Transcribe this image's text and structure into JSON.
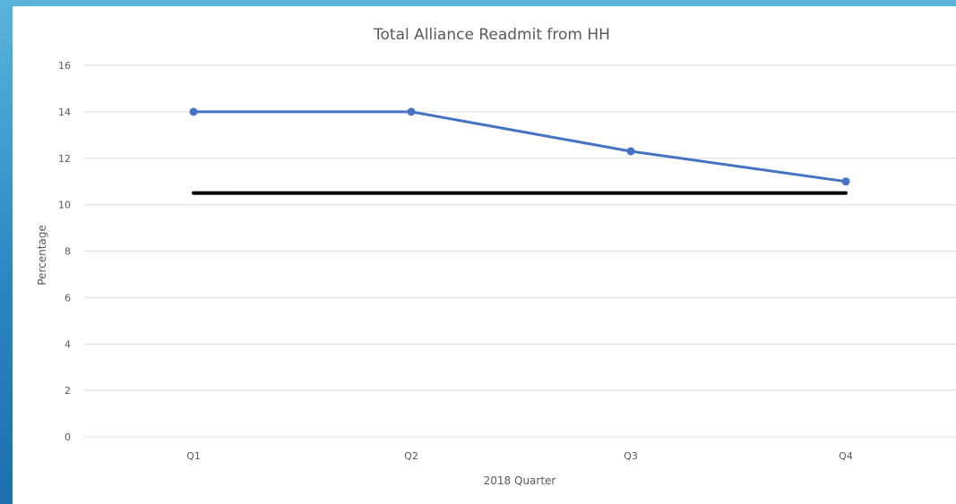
{
  "chart_data": {
    "type": "line",
    "title": "Total Alliance Readmit from HH",
    "xlabel": "2018 Quarter",
    "ylabel": "Percentage",
    "categories": [
      "Q1",
      "Q2",
      "Q3",
      "Q4"
    ],
    "ylim": [
      0,
      16
    ],
    "yticks": [
      0,
      2,
      4,
      6,
      8,
      10,
      12,
      14,
      16
    ],
    "grid": true,
    "legend": "none",
    "series": [
      {
        "values": [
          14,
          14,
          12.3,
          11
        ],
        "color": "#4472c4",
        "markers": true
      },
      {
        "values": [
          10.5,
          10.5,
          10.5,
          10.5
        ],
        "color": "#000000",
        "markers": false
      }
    ]
  }
}
